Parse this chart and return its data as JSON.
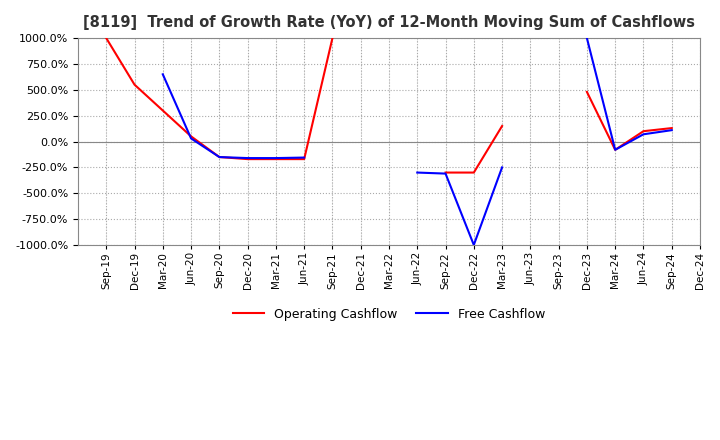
{
  "title": "[8119]  Trend of Growth Rate (YoY) of 12-Month Moving Sum of Cashflows",
  "ylim": [
    -1000,
    1000
  ],
  "yticks": [
    -1000,
    -750,
    -500,
    -250,
    0,
    250,
    500,
    750,
    1000
  ],
  "legend_labels": [
    "Operating Cashflow",
    "Free Cashflow"
  ],
  "line_colors": [
    "#ff0000",
    "#0000ff"
  ],
  "background_color": "#ffffff",
  "plot_bg_color": "#ffffff",
  "grid_color": "#aaaaaa",
  "dates": [
    "Sep-19",
    "Dec-19",
    "Mar-20",
    "Jun-20",
    "Sep-20",
    "Dec-20",
    "Mar-21",
    "Jun-21",
    "Sep-21",
    "Dec-21",
    "Mar-22",
    "Jun-22",
    "Sep-22",
    "Dec-22",
    "Mar-23",
    "Jun-23",
    "Sep-23",
    "Dec-23",
    "Mar-24",
    "Jun-24",
    "Sep-24",
    "Dec-24"
  ],
  "operating_cashflow": [
    1000,
    550,
    300,
    50,
    -150,
    -170,
    -170,
    -170,
    1000,
    null,
    null,
    null,
    -300,
    -300,
    150,
    null,
    null,
    480,
    -80,
    100,
    130,
    null
  ],
  "free_cashflow": [
    null,
    null,
    650,
    30,
    -150,
    -160,
    -160,
    -155,
    null,
    null,
    null,
    -300,
    -310,
    -1000,
    -250,
    null,
    null,
    1000,
    -80,
    70,
    110,
    null
  ]
}
